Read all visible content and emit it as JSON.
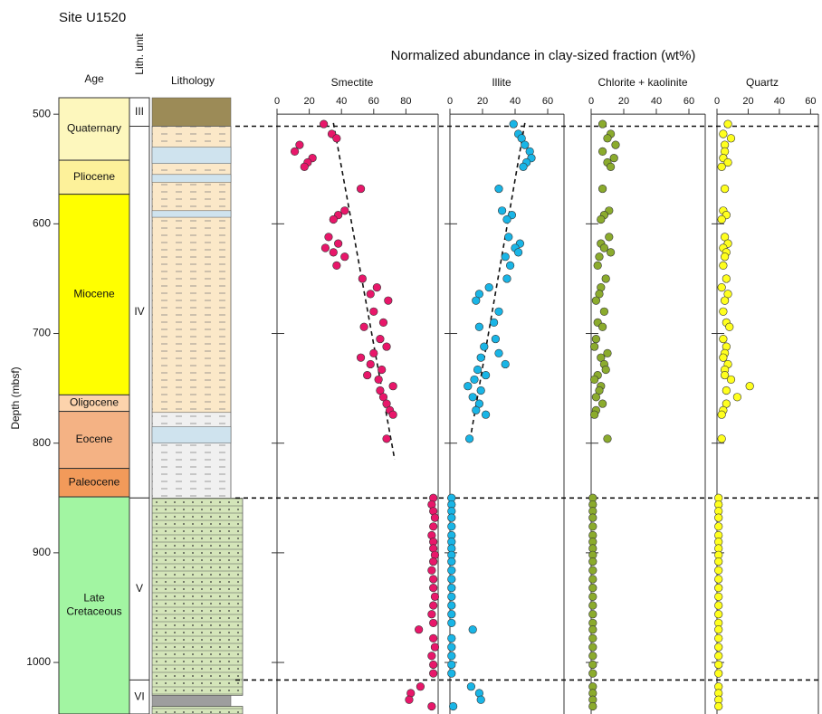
{
  "header": {
    "site": "Site U1520",
    "age": "Age",
    "lith_unit": "Lith. unit",
    "lithology": "Lithology",
    "y_label": "Depth (mbsf)"
  },
  "chart_data": {
    "type": "scatter",
    "title": "Normalized abundance in clay-sized fraction (wt%)",
    "ylim": [
      485,
      1047
    ],
    "y_reversed": true,
    "yticks": [
      500,
      600,
      700,
      800,
      900,
      1000
    ],
    "depth": [
      509,
      518,
      522,
      528,
      534,
      540,
      544,
      548,
      568,
      588,
      592,
      596,
      612,
      618,
      622,
      626,
      630,
      638,
      650,
      658,
      664,
      670,
      680,
      690,
      694,
      705,
      712,
      718,
      722,
      728,
      733,
      738,
      742,
      748,
      752,
      758,
      764,
      770,
      774,
      796,
      850,
      856,
      862,
      868,
      876,
      884,
      890,
      896,
      902,
      908,
      916,
      924,
      932,
      940,
      948,
      956,
      964,
      970,
      978,
      986,
      994,
      1002,
      1010,
      1022,
      1028,
      1034,
      1040
    ],
    "series": [
      {
        "name": "Smectite",
        "color": "#e8176a",
        "xlim": [
          0,
          100
        ],
        "xticks": [
          0,
          20,
          40,
          60,
          80
        ],
        "values": [
          29,
          34,
          37,
          14,
          11,
          22,
          19,
          17,
          52,
          42,
          38,
          35,
          32,
          38,
          30,
          35,
          42,
          37,
          53,
          62,
          58,
          69,
          60,
          66,
          54,
          64,
          68,
          60,
          52,
          58,
          65,
          56,
          63,
          72,
          64,
          66,
          68,
          70,
          72,
          68,
          97,
          96,
          97,
          98,
          97,
          96,
          97,
          97,
          98,
          97,
          96,
          97,
          97,
          98,
          97,
          96,
          97,
          88,
          97,
          98,
          96,
          97,
          97,
          89,
          83,
          82,
          96
        ],
        "trend": {
          "x": [
            35,
            73
          ],
          "depth": [
            508,
            815
          ]
        }
      },
      {
        "name": "Illite",
        "color": "#19b5e6",
        "xlim": [
          0,
          70
        ],
        "xticks": [
          0,
          20,
          40,
          60
        ],
        "values": [
          39,
          42,
          44,
          46,
          49,
          50,
          47,
          45,
          30,
          32,
          38,
          35,
          36,
          43,
          40,
          42,
          34,
          37,
          35,
          24,
          18,
          16,
          30,
          27,
          18,
          28,
          21,
          30,
          19,
          34,
          17,
          22,
          15,
          11,
          19,
          14,
          18,
          16,
          22,
          12,
          1,
          1,
          1,
          1,
          1,
          1,
          1,
          1,
          1,
          1,
          1,
          1,
          1,
          1,
          1,
          1,
          1,
          14,
          1,
          1,
          1,
          1,
          1,
          13,
          18,
          19,
          2
        ],
        "trend": {
          "x": [
            46,
            12
          ],
          "depth": [
            508,
            800
          ]
        }
      },
      {
        "name": "Chlorite + kaolinite",
        "color": "#8bab2d",
        "xlim": [
          0,
          70
        ],
        "xticks": [
          0,
          20,
          40,
          60
        ],
        "values": [
          7,
          12,
          10,
          15,
          7,
          14,
          10,
          12,
          7,
          11,
          8,
          6,
          11,
          6,
          8,
          12,
          5,
          4,
          9,
          6,
          5,
          3,
          8,
          4,
          7,
          3,
          2,
          10,
          6,
          8,
          9,
          4,
          2,
          6,
          5,
          3,
          7,
          3,
          2,
          10,
          1,
          1,
          1,
          1,
          1,
          1,
          1,
          1,
          1,
          1,
          1,
          1,
          1,
          1,
          1,
          1,
          1,
          1,
          1,
          1,
          1,
          1,
          1,
          1,
          1,
          1,
          1
        ]
      },
      {
        "name": "Quartz",
        "color": "#ffff1e",
        "xlim": [
          0,
          65
        ],
        "xticks": [
          0,
          20,
          40,
          60
        ],
        "values": [
          7,
          4,
          9,
          5,
          5,
          4,
          7,
          3,
          5,
          4,
          6,
          3,
          5,
          7,
          4,
          6,
          5,
          4,
          6,
          3,
          7,
          5,
          4,
          6,
          8,
          4,
          6,
          5,
          4,
          7,
          5,
          5,
          9,
          21,
          6,
          13,
          6,
          4,
          3,
          3,
          1,
          1,
          1,
          1,
          1,
          1,
          1,
          1,
          1,
          1,
          1,
          1,
          1,
          1,
          1,
          1,
          1,
          1,
          1,
          1,
          1,
          1,
          1,
          1,
          1,
          1,
          1
        ]
      }
    ],
    "boundaries": [
      511,
      850,
      1016
    ]
  },
  "age_units": [
    {
      "label": [
        "Quaternary"
      ],
      "top": 485,
      "base": 542,
      "color": "#fdf7bd"
    },
    {
      "label": [
        "Pliocene"
      ],
      "top": 542,
      "base": 573,
      "color": "#fdf19a"
    },
    {
      "label": [
        "Miocene"
      ],
      "top": 573,
      "base": 756,
      "color": "#ffff00"
    },
    {
      "label": [
        "Oligocene"
      ],
      "top": 756,
      "base": 771,
      "color": "#fcd3ac"
    },
    {
      "label": [
        "Eocene"
      ],
      "top": 771,
      "base": 823,
      "color": "#f4b284"
    },
    {
      "label": [
        "Paleocene"
      ],
      "top": 823,
      "base": 849,
      "color": "#f29a5a"
    },
    {
      "label": [
        "Late",
        "Cretaceous"
      ],
      "top": 849,
      "base": 1047,
      "color": "#a2f5a2"
    }
  ],
  "lith_units": [
    {
      "label": "III",
      "top": 485,
      "base": 511
    },
    {
      "label": "IV",
      "top": 511,
      "base": 850
    },
    {
      "label": "V",
      "top": 850,
      "base": 1016
    },
    {
      "label": "VI",
      "top": 1016,
      "base": 1047
    }
  ],
  "lithology": [
    {
      "top": 485,
      "base": 511,
      "color": "#9c8b57",
      "pattern": "none"
    },
    {
      "top": 511,
      "base": 772,
      "color": "#fbe8c8",
      "pattern": "dash"
    },
    {
      "top": 530,
      "base": 545,
      "color": "#cfe3ee",
      "pattern": "none"
    },
    {
      "top": 555,
      "base": 562,
      "color": "#cfe3ee",
      "pattern": "none"
    },
    {
      "top": 588,
      "base": 594,
      "color": "#cfe3ee",
      "pattern": "none"
    },
    {
      "top": 772,
      "base": 850,
      "color": "#f0f0f0",
      "pattern": "dash"
    },
    {
      "top": 785,
      "base": 800,
      "color": "#cfe3ee",
      "pattern": "none"
    },
    {
      "top": 850,
      "base": 1030,
      "color": "#d4e5b9",
      "pattern": "dot"
    },
    {
      "top": 1030,
      "base": 1040,
      "color": "#9e9e9e",
      "pattern": "none"
    },
    {
      "top": 1040,
      "base": 1047,
      "color": "#d4e5b9",
      "pattern": "dot"
    }
  ]
}
